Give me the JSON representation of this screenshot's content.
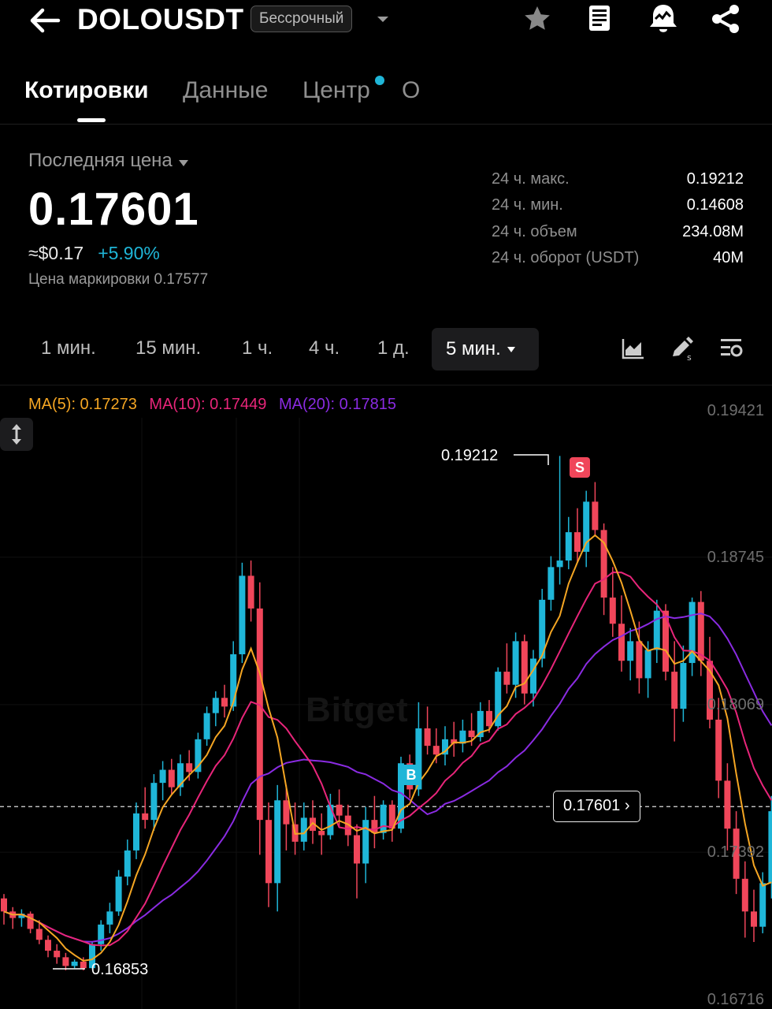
{
  "header": {
    "pair": "DOLOUSDT",
    "contract_type": "Бессрочный",
    "icons": [
      "back-arrow-icon",
      "caret-down-icon",
      "star-icon",
      "document-icon",
      "price-alert-icon",
      "share-icon"
    ]
  },
  "tabs": [
    {
      "label": "Котировки",
      "active": true
    },
    {
      "label": "Данные",
      "active": false
    },
    {
      "label": "Центр",
      "active": false,
      "dot": true
    },
    {
      "label": "О",
      "active": false
    }
  ],
  "price": {
    "label": "Последняя цена",
    "value": "0.17601",
    "usd": "≈$0.17",
    "change": "+5.90%",
    "mark_price": "Цена маркировки 0.17577"
  },
  "stats": [
    {
      "label": "24 ч. макс.",
      "value": "0.19212"
    },
    {
      "label": "24 ч. мин.",
      "value": "0.14608"
    },
    {
      "label": "24 ч. объем",
      "value": "234.08M"
    },
    {
      "label": "24 ч. оборот (USDT)",
      "value": "40M"
    }
  ],
  "timeframes": [
    "1 мин.",
    "15 мин.",
    "1 ч.",
    "4 ч.",
    "1 д."
  ],
  "active_timeframe": "5 мин.",
  "ma": {
    "ma5": "MA(5): 0.17273",
    "ma10": "MA(10): 0.17449",
    "ma20": "MA(20): 0.17815"
  },
  "colors": {
    "up": "#1fb6d8",
    "down": "#f0465a",
    "ma5": "#f5a623",
    "ma10": "#e8257a",
    "ma20": "#8a2be2"
  },
  "chart_data": {
    "type": "candlestick",
    "yaxis_ticks": [
      "0.19421",
      "0.18745",
      "0.18069",
      "0.17392",
      "0.16716"
    ],
    "ylim": [
      0.16716,
      0.19421
    ],
    "high_label": "0.19212",
    "low_label": "0.16853",
    "current_price": "0.17601",
    "buy_marker": "B",
    "sell_marker": "S",
    "watermark": "Bitget",
    "candles": [
      [
        0.1718,
        0.172,
        0.1706,
        0.1712
      ],
      [
        0.1712,
        0.1714,
        0.1704,
        0.1709
      ],
      [
        0.1709,
        0.1713,
        0.1705,
        0.1711
      ],
      [
        0.1711,
        0.1712,
        0.1702,
        0.1704
      ],
      [
        0.1704,
        0.1708,
        0.1697,
        0.1699
      ],
      [
        0.1699,
        0.1701,
        0.1691,
        0.1694
      ],
      [
        0.1694,
        0.1697,
        0.1688,
        0.1691
      ],
      [
        0.1691,
        0.1693,
        0.1685,
        0.1687
      ],
      [
        0.1687,
        0.169,
        0.1686,
        0.1689
      ],
      [
        0.1689,
        0.1691,
        0.1685,
        0.1686
      ],
      [
        0.1686,
        0.1698,
        0.1686,
        0.1697
      ],
      [
        0.1697,
        0.1708,
        0.1694,
        0.1706
      ],
      [
        0.1706,
        0.1716,
        0.1702,
        0.1712
      ],
      [
        0.1712,
        0.1731,
        0.171,
        0.1728
      ],
      [
        0.1728,
        0.1745,
        0.1724,
        0.174
      ],
      [
        0.174,
        0.1762,
        0.1736,
        0.1757
      ],
      [
        0.1757,
        0.1769,
        0.175,
        0.1754
      ],
      [
        0.1754,
        0.1775,
        0.1749,
        0.1771
      ],
      [
        0.1771,
        0.1781,
        0.1763,
        0.1777
      ],
      [
        0.1777,
        0.1782,
        0.1766,
        0.1769
      ],
      [
        0.1769,
        0.1784,
        0.1765,
        0.178
      ],
      [
        0.178,
        0.1786,
        0.1772,
        0.1776
      ],
      [
        0.1776,
        0.1794,
        0.1773,
        0.1791
      ],
      [
        0.1791,
        0.1806,
        0.1788,
        0.1803
      ],
      [
        0.1803,
        0.1813,
        0.1797,
        0.181
      ],
      [
        0.181,
        0.1816,
        0.1801,
        0.1806
      ],
      [
        0.1806,
        0.1836,
        0.1804,
        0.183
      ],
      [
        0.183,
        0.1872,
        0.1826,
        0.1866
      ],
      [
        0.1866,
        0.1873,
        0.1845,
        0.1851
      ],
      [
        0.1851,
        0.1863,
        0.1738,
        0.1754
      ],
      [
        0.1754,
        0.1762,
        0.1714,
        0.1725
      ],
      [
        0.1725,
        0.177,
        0.1712,
        0.1763
      ],
      [
        0.1763,
        0.177,
        0.174,
        0.1752
      ],
      [
        0.1752,
        0.1762,
        0.1738,
        0.1744
      ],
      [
        0.1744,
        0.1762,
        0.174,
        0.1755
      ],
      [
        0.1755,
        0.1763,
        0.1743,
        0.1749
      ],
      [
        0.1749,
        0.1757,
        0.1738,
        0.1747
      ],
      [
        0.1747,
        0.1766,
        0.1745,
        0.1761
      ],
      [
        0.1761,
        0.1768,
        0.1751,
        0.1756
      ],
      [
        0.1756,
        0.1761,
        0.1742,
        0.1747
      ],
      [
        0.1747,
        0.1752,
        0.1718,
        0.1734
      ],
      [
        0.1734,
        0.176,
        0.1725,
        0.1754
      ],
      [
        0.1754,
        0.1765,
        0.1741,
        0.1748
      ],
      [
        0.1748,
        0.1763,
        0.1745,
        0.1761
      ],
      [
        0.1761,
        0.1763,
        0.1744,
        0.175
      ],
      [
        0.175,
        0.1783,
        0.1748,
        0.178
      ],
      [
        0.178,
        0.1784,
        0.1764,
        0.1768
      ],
      [
        0.1768,
        0.1808,
        0.1765,
        0.1796
      ],
      [
        0.1796,
        0.1806,
        0.1784,
        0.1788
      ],
      [
        0.1788,
        0.1796,
        0.178,
        0.1784
      ],
      [
        0.1784,
        0.1797,
        0.1779,
        0.1791
      ],
      [
        0.1791,
        0.1799,
        0.1783,
        0.1789
      ],
      [
        0.1789,
        0.18,
        0.1785,
        0.1795
      ],
      [
        0.1795,
        0.1803,
        0.1788,
        0.1792
      ],
      [
        0.1792,
        0.1808,
        0.179,
        0.1804
      ],
      [
        0.1804,
        0.1809,
        0.1794,
        0.1797
      ],
      [
        0.1797,
        0.1824,
        0.1795,
        0.1822
      ],
      [
        0.1822,
        0.1835,
        0.1812,
        0.1816
      ],
      [
        0.1816,
        0.184,
        0.181,
        0.1836
      ],
      [
        0.1836,
        0.1839,
        0.1807,
        0.1812
      ],
      [
        0.1812,
        0.1832,
        0.1806,
        0.1828
      ],
      [
        0.1828,
        0.186,
        0.1824,
        0.1855
      ],
      [
        0.1855,
        0.1875,
        0.185,
        0.187
      ],
      [
        0.187,
        0.1921,
        0.1862,
        0.1873
      ],
      [
        0.1873,
        0.1893,
        0.1869,
        0.1886
      ],
      [
        0.1886,
        0.1897,
        0.1872,
        0.1877
      ],
      [
        0.1877,
        0.1905,
        0.187,
        0.19
      ],
      [
        0.19,
        0.1909,
        0.1884,
        0.1887
      ],
      [
        0.1887,
        0.189,
        0.1848,
        0.1856
      ],
      [
        0.1856,
        0.187,
        0.1838,
        0.1844
      ],
      [
        0.1844,
        0.1857,
        0.1822,
        0.1827
      ],
      [
        0.1827,
        0.1842,
        0.1818,
        0.1836
      ],
      [
        0.1836,
        0.1845,
        0.1812,
        0.1819
      ],
      [
        0.1819,
        0.1836,
        0.181,
        0.1832
      ],
      [
        0.1832,
        0.1855,
        0.1826,
        0.185
      ],
      [
        0.185,
        0.1853,
        0.1818,
        0.1822
      ],
      [
        0.1822,
        0.1836,
        0.179,
        0.1805
      ],
      [
        0.1805,
        0.1834,
        0.1799,
        0.1826
      ],
      [
        0.1826,
        0.1856,
        0.182,
        0.1854
      ],
      [
        0.1854,
        0.1859,
        0.182,
        0.1827
      ],
      [
        0.1827,
        0.1838,
        0.1796,
        0.18
      ],
      [
        0.18,
        0.181,
        0.1764,
        0.1772
      ],
      [
        0.1772,
        0.178,
        0.174,
        0.175
      ],
      [
        0.175,
        0.1758,
        0.172,
        0.1727
      ],
      [
        0.1727,
        0.1735,
        0.17,
        0.1712
      ],
      [
        0.1712,
        0.1722,
        0.1698,
        0.1705
      ],
      [
        0.1705,
        0.173,
        0.1702,
        0.1725
      ],
      [
        0.1725,
        0.1765,
        0.1718,
        0.1758
      ]
    ]
  }
}
